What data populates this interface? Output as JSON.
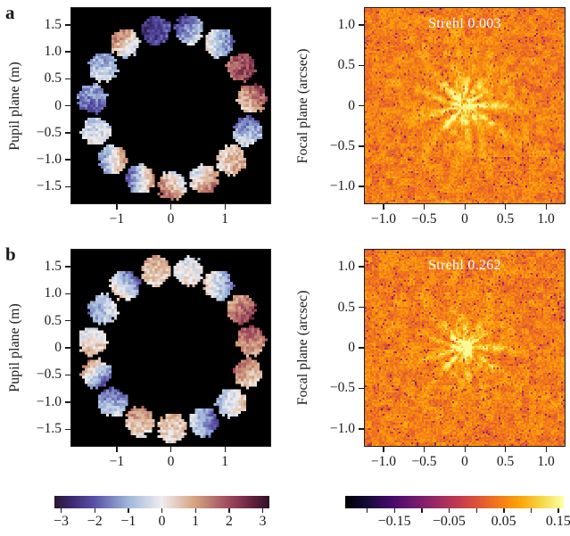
{
  "figure": {
    "background": "#ffffff",
    "rows": [
      {
        "label": "a"
      },
      {
        "label": "b"
      }
    ]
  },
  "chart_data": [
    {
      "id": "pupil-a",
      "type": "heatmap",
      "row": "a",
      "ylabel": "Pupil plane (m)",
      "xlim": [
        -1.84,
        1.84
      ],
      "ylim": [
        -1.81,
        1.81
      ],
      "xticks": [
        {
          "v": -1,
          "label": "−1"
        },
        {
          "v": 0,
          "label": "0"
        },
        {
          "v": 1,
          "label": "1"
        }
      ],
      "yticks": [
        {
          "v": 1.5,
          "label": "1.5"
        },
        {
          "v": 1.0,
          "label": "1.0"
        },
        {
          "v": 0.5,
          "label": "0.5"
        },
        {
          "v": 0,
          "label": "0"
        },
        {
          "v": -0.5,
          "label": "−0.5"
        },
        {
          "v": -1.0,
          "label": "−1.0"
        },
        {
          "v": -1.5,
          "label": "−1.5"
        }
      ],
      "background": "#000000",
      "colormap": "twilight_shifted",
      "clim": [
        -3.2,
        3.2
      ],
      "ring": {
        "n_segments": 15,
        "radius_m": 1.47,
        "segment_radius_m": 0.27,
        "start_angle_deg": 102,
        "step_deg": -24
      },
      "segments": [
        {
          "v1": -2.6,
          "v2": -2.0,
          "dir": 0
        },
        {
          "v1": -2.4,
          "v2": -0.3,
          "dir": -45
        },
        {
          "v1": 0.3,
          "v2": -1.8,
          "dir": 0
        },
        {
          "v1": 2.4,
          "v2": 1.6,
          "dir": 180
        },
        {
          "v1": 2.1,
          "v2": 0.3,
          "dir": -135
        },
        {
          "v1": -2.0,
          "v2": -0.2,
          "dir": -90
        },
        {
          "v1": 0.2,
          "v2": 1.1,
          "dir": 0
        },
        {
          "v1": -0.6,
          "v2": 1.7,
          "dir": -45
        },
        {
          "v1": 1.9,
          "v2": -0.6,
          "dir": 45
        },
        {
          "v1": -2.3,
          "v2": 1.2,
          "dir": 0
        },
        {
          "v1": -1.7,
          "v2": 1.4,
          "dir": 0
        },
        {
          "v1": -0.8,
          "v2": 0.1,
          "dir": -90
        },
        {
          "v1": -2.2,
          "v2": -1.0,
          "dir": 90
        },
        {
          "v1": -1.4,
          "v2": -0.3,
          "dir": -90
        },
        {
          "v1": 1.7,
          "v2": -0.9,
          "dir": -45
        }
      ],
      "noise_amp": 0.55,
      "seed": 3
    },
    {
      "id": "focal-a",
      "type": "heatmap",
      "row": "a",
      "title": "Strehl 0.003",
      "strehl": 0.003,
      "ylabel": "Focal plane (arcsec)",
      "xlim": [
        -1.23,
        1.23
      ],
      "ylim": [
        -1.21,
        1.21
      ],
      "xticks": [
        {
          "v": -1.0,
          "label": "−1.0"
        },
        {
          "v": -0.5,
          "label": "−0.5"
        },
        {
          "v": 0,
          "label": "0"
        },
        {
          "v": 0.5,
          "label": "0.5"
        },
        {
          "v": 1.0,
          "label": "1.0"
        }
      ],
      "yticks": [
        {
          "v": 1.0,
          "label": "1.0"
        },
        {
          "v": 0.5,
          "label": "0.5"
        },
        {
          "v": 0,
          "label": "0"
        },
        {
          "v": -0.5,
          "label": "−0.5"
        },
        {
          "v": -1.0,
          "label": "−1.0"
        }
      ],
      "colormap": "inferno",
      "clim": [
        -0.24,
        0.16
      ],
      "psf": {
        "base_t": 0.71,
        "noise_t": 0.065,
        "mottle_t": 0.05,
        "dark_frac": 0.045,
        "dark_depth": 0.22,
        "core_amp": 0.21,
        "core_sigma": 0.14,
        "halo_amp": 0.27,
        "halo_sigma": 0.44,
        "outer_amp": 0.11,
        "outer_sigma": 0.82,
        "n_streaks": 13,
        "seed": 11
      }
    },
    {
      "id": "pupil-b",
      "type": "heatmap",
      "row": "b",
      "ylabel": "Pupil plane (m)",
      "xlim": [
        -1.84,
        1.84
      ],
      "ylim": [
        -1.81,
        1.81
      ],
      "xticks": [
        {
          "v": -1,
          "label": "−1"
        },
        {
          "v": 0,
          "label": "0"
        },
        {
          "v": 1,
          "label": "1"
        }
      ],
      "yticks": [
        {
          "v": 1.5,
          "label": "1.5"
        },
        {
          "v": 1.0,
          "label": "1.0"
        },
        {
          "v": 0.5,
          "label": "0.5"
        },
        {
          "v": 0,
          "label": "0"
        },
        {
          "v": -0.5,
          "label": "−0.5"
        },
        {
          "v": -1.0,
          "label": "−1.0"
        },
        {
          "v": -1.5,
          "label": "−1.5"
        }
      ],
      "background": "#000000",
      "colormap": "twilight_shifted",
      "clim": [
        -3.2,
        3.2
      ],
      "ring": {
        "n_segments": 15,
        "radius_m": 1.47,
        "segment_radius_m": 0.27,
        "start_angle_deg": 102,
        "step_deg": -24
      },
      "segments": [
        {
          "v1": 0.9,
          "v2": 0.3,
          "dir": -90
        },
        {
          "v1": -0.4,
          "v2": 0.3,
          "dir": -90
        },
        {
          "v1": 0.5,
          "v2": -1.7,
          "dir": 0
        },
        {
          "v1": 0.9,
          "v2": 2.3,
          "dir": -45
        },
        {
          "v1": 2.0,
          "v2": 0.8,
          "dir": -90
        },
        {
          "v1": 1.6,
          "v2": 0.2,
          "dir": -45
        },
        {
          "v1": -1.0,
          "v2": 0.6,
          "dir": 0
        },
        {
          "v1": -0.3,
          "v2": -2.1,
          "dir": 0
        },
        {
          "v1": 0.8,
          "v2": 0.1,
          "dir": -90
        },
        {
          "v1": 1.5,
          "v2": 0.1,
          "dir": -90
        },
        {
          "v1": -2.1,
          "v2": -0.2,
          "dir": -90
        },
        {
          "v1": 1.4,
          "v2": -2.3,
          "dir": -45
        },
        {
          "v1": -0.5,
          "v2": 0.8,
          "dir": -90
        },
        {
          "v1": -1.4,
          "v2": -0.2,
          "dir": 0
        },
        {
          "v1": -2.2,
          "v2": 0.8,
          "dir": -135
        }
      ],
      "noise_amp": 0.5,
      "seed": 17
    },
    {
      "id": "focal-b",
      "type": "heatmap",
      "row": "b",
      "title": "Strehl 0.262",
      "strehl": 0.262,
      "ylabel": "Focal plane (arcsec)",
      "xlim": [
        -1.23,
        1.23
      ],
      "ylim": [
        -1.21,
        1.21
      ],
      "xticks": [
        {
          "v": -1.0,
          "label": "−1.0"
        },
        {
          "v": -0.5,
          "label": "−0.5"
        },
        {
          "v": 0,
          "label": "0"
        },
        {
          "v": 0.5,
          "label": "0.5"
        },
        {
          "v": 1.0,
          "label": "1.0"
        }
      ],
      "yticks": [
        {
          "v": 1.0,
          "label": "1.0"
        },
        {
          "v": 0.5,
          "label": "0.5"
        },
        {
          "v": 0,
          "label": "0"
        },
        {
          "v": -0.5,
          "label": "−0.5"
        },
        {
          "v": -1.0,
          "label": "−1.0"
        }
      ],
      "colormap": "inferno",
      "clim": [
        -0.24,
        0.16
      ],
      "psf": {
        "base_t": 0.71,
        "noise_t": 0.065,
        "mottle_t": 0.05,
        "dark_frac": 0.05,
        "dark_depth": 0.22,
        "core_amp": 0.32,
        "core_sigma": 0.11,
        "halo_amp": 0.25,
        "halo_sigma": 0.38,
        "outer_amp": 0.1,
        "outer_sigma": 0.76,
        "n_streaks": 13,
        "seed": 29
      }
    }
  ],
  "colorbars": [
    {
      "id": "pupil-colorbar",
      "colormap": "twilight_shifted",
      "vmin": -3.2,
      "vmax": 3.2,
      "ticks": [
        {
          "v": -3,
          "label": "−3"
        },
        {
          "v": -2,
          "label": "−2"
        },
        {
          "v": -1,
          "label": "−1"
        },
        {
          "v": 0,
          "label": "0"
        },
        {
          "v": 1,
          "label": "1"
        },
        {
          "v": 2,
          "label": "2"
        },
        {
          "v": 3,
          "label": "3"
        }
      ]
    },
    {
      "id": "focal-colorbar",
      "colormap": "inferno",
      "vmin": -0.24,
      "vmax": 0.16,
      "ticks": [
        {
          "v": -0.2,
          "label": ""
        },
        {
          "v": -0.15,
          "label": "−0.15"
        },
        {
          "v": -0.1,
          "label": ""
        },
        {
          "v": -0.05,
          "label": "−0.05"
        },
        {
          "v": 0.0,
          "label": ""
        },
        {
          "v": 0.05,
          "label": "0.05"
        },
        {
          "v": 0.1,
          "label": ""
        },
        {
          "v": 0.15,
          "label": "0.15"
        }
      ]
    }
  ]
}
